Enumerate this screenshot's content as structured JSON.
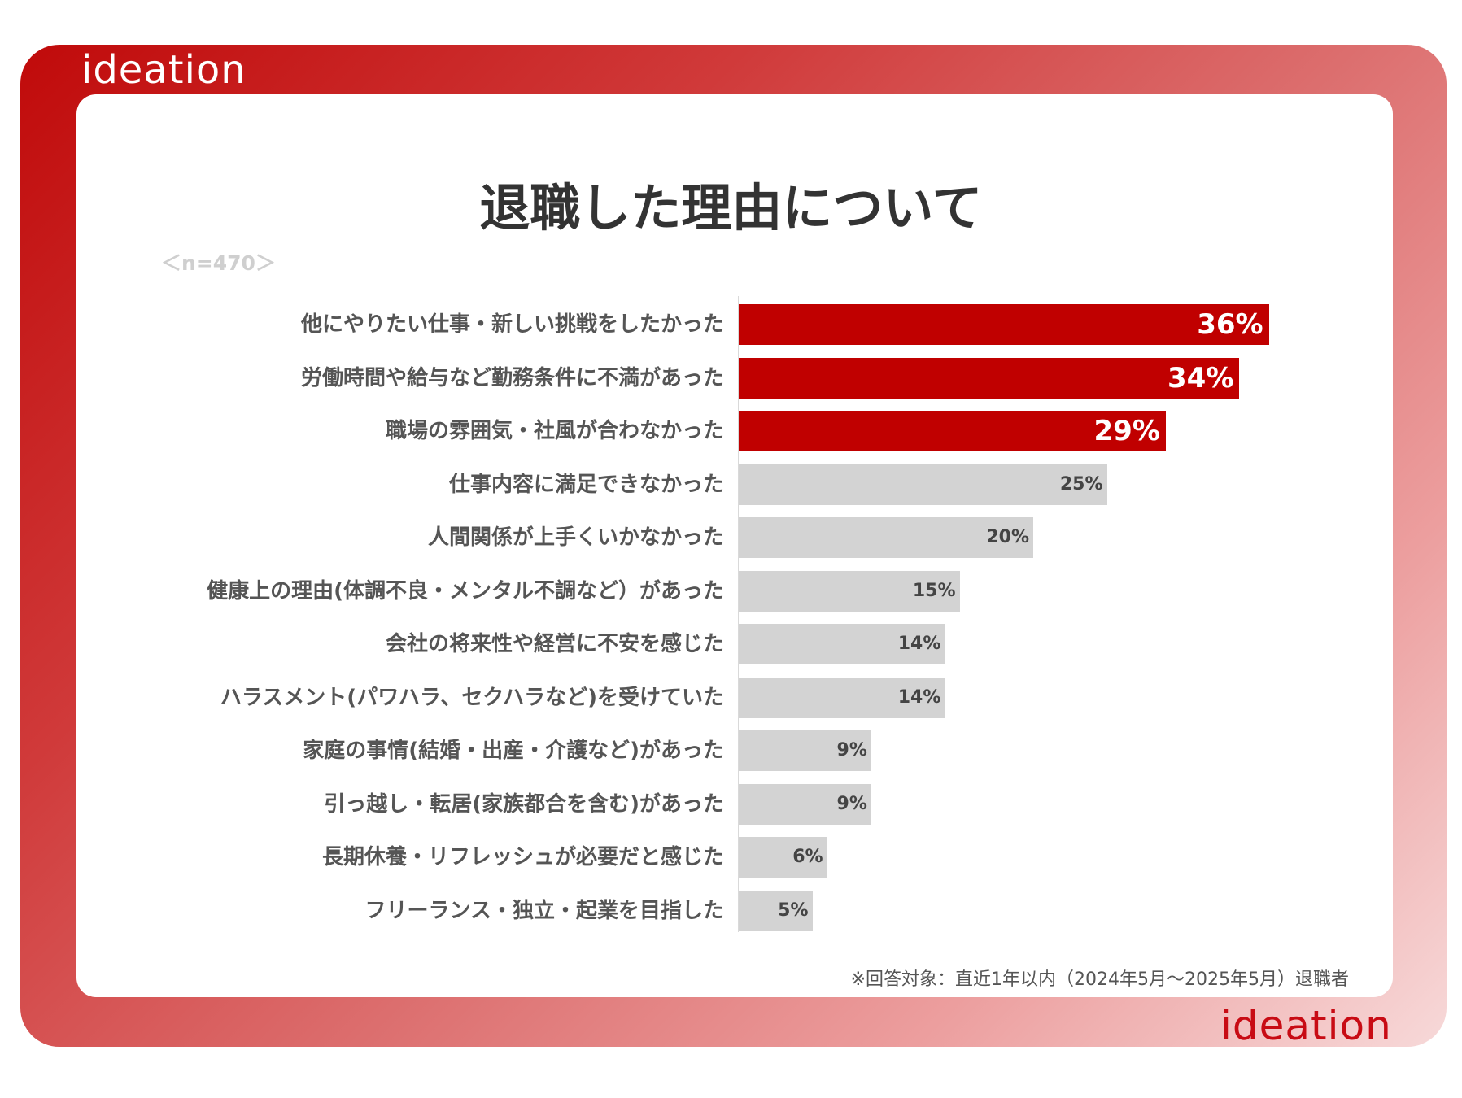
{
  "brand": {
    "name": "ideation"
  },
  "colors": {
    "highlight": "#c00000",
    "normal": "#d3d3d3"
  },
  "chart_data": {
    "type": "bar",
    "orientation": "horizontal",
    "title": "退職した理由について",
    "sample_size": "＜n=470＞",
    "categories": [
      "他にやりたい仕事・新しい挑戦をしたかった",
      "労働時間や給与など勤務条件に不満があった",
      "職場の雰囲気・社風が合わなかった",
      "仕事内容に満足できなかった",
      "人間関係が上手くいかなかった",
      "健康上の理由(体調不良・メンタル不調など）があった",
      "会社の将来性や経営に不安を感じた",
      "ハラスメント(パワハラ、セクハラなど)を受けていた",
      "家庭の事情(結婚・出産・介護など)があった",
      "引っ越し・転居(家族都合を含む)があった",
      "長期休養・リフレッシュが必要だと感じた",
      "フリーランス・独立・起業を目指した"
    ],
    "values": [
      36,
      34,
      29,
      25,
      20,
      15,
      14,
      14,
      9,
      9,
      6,
      5
    ],
    "value_labels": [
      "36%",
      "34%",
      "29%",
      "25%",
      "20%",
      "15%",
      "14%",
      "14%",
      "9%",
      "9%",
      "6%",
      "5%"
    ],
    "highlight_count": 3,
    "xlim": [
      0,
      45
    ],
    "note": "※回答対象：直近1年以内（2024年5月〜2025年5月）退職者"
  }
}
